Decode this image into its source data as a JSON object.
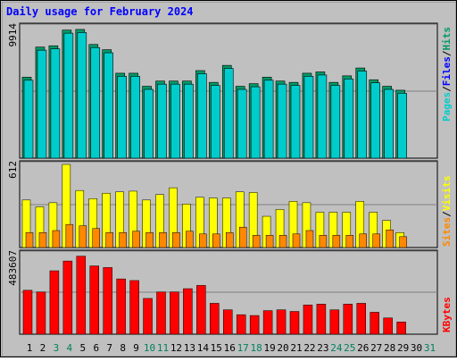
{
  "chart_data": [
    {
      "type": "bar",
      "panel": "hits-files-pages",
      "title": "Daily usage for February 2024",
      "ylabel_max": "9914",
      "ylim": [
        0,
        9914
      ],
      "legend": [
        "Pages",
        "/",
        "Files",
        "/",
        "Hits"
      ],
      "categories": [
        "1",
        "2",
        "3",
        "4",
        "5",
        "6",
        "7",
        "8",
        "9",
        "10",
        "11",
        "12",
        "13",
        "14",
        "15",
        "16",
        "17",
        "18",
        "19",
        "20",
        "21",
        "22",
        "23",
        "24",
        "25",
        "26",
        "27",
        "28",
        "29",
        "30",
        "31"
      ],
      "series": [
        {
          "name": "Hits",
          "values": [
            6200,
            8500,
            8600,
            9800,
            9850,
            8700,
            8300,
            6500,
            6500,
            5500,
            5900,
            5900,
            5900,
            6700,
            5800,
            7100,
            5500,
            5700,
            6200,
            5900,
            5800,
            6500,
            6600,
            5800,
            6300,
            6900,
            6000,
            5500,
            5200,
            null,
            null
          ]
        },
        {
          "name": "Files",
          "values": [
            6100,
            8400,
            8500,
            9700,
            9750,
            8600,
            8200,
            6400,
            6400,
            5400,
            5800,
            5800,
            5800,
            6600,
            5700,
            7000,
            5400,
            5600,
            6100,
            5800,
            5700,
            6400,
            6500,
            5700,
            6200,
            6800,
            5900,
            5400,
            5100,
            null,
            null
          ]
        }
      ]
    },
    {
      "type": "bar",
      "panel": "visits-sites",
      "ylabel_max": "612",
      "ylim": [
        0,
        612
      ],
      "legend": [
        "Sites",
        "/",
        "Visits"
      ],
      "series": [
        {
          "name": "Visits",
          "values": [
            350,
            300,
            330,
            612,
            420,
            360,
            400,
            410,
            415,
            350,
            390,
            440,
            320,
            370,
            365,
            365,
            410,
            405,
            230,
            280,
            340,
            330,
            260,
            260,
            260,
            340,
            260,
            200,
            110,
            null,
            null
          ]
        },
        {
          "name": "Sites",
          "values": [
            110,
            110,
            125,
            170,
            160,
            140,
            110,
            110,
            120,
            110,
            110,
            110,
            120,
            100,
            100,
            110,
            150,
            90,
            90,
            90,
            100,
            125,
            90,
            90,
            90,
            100,
            100,
            130,
            80,
            null,
            null
          ]
        }
      ]
    },
    {
      "type": "bar",
      "panel": "kbytes",
      "ylabel_max": "483607",
      "ylim": [
        0,
        483607
      ],
      "legend": [
        "KBytes"
      ],
      "series": [
        {
          "name": "KBytes",
          "values": [
            270000,
            260000,
            390000,
            450000,
            480000,
            420000,
            410000,
            340000,
            330000,
            220000,
            260000,
            260000,
            280000,
            300000,
            190000,
            150000,
            120000,
            115000,
            145000,
            150000,
            140000,
            180000,
            185000,
            150000,
            185000,
            190000,
            135000,
            100000,
            75000,
            null,
            null
          ]
        }
      ]
    }
  ],
  "colors": {
    "hits": "#009966",
    "files": "#0000ff",
    "pages": "#00cccc",
    "visits": "#ffff00",
    "sites": "#ff8800",
    "kbytes": "#ff0000",
    "day_weekend": "#00805c",
    "day_weekday": "#000000"
  },
  "weekend_days": [
    "3",
    "4",
    "10",
    "11",
    "17",
    "18",
    "24",
    "25",
    "31"
  ]
}
